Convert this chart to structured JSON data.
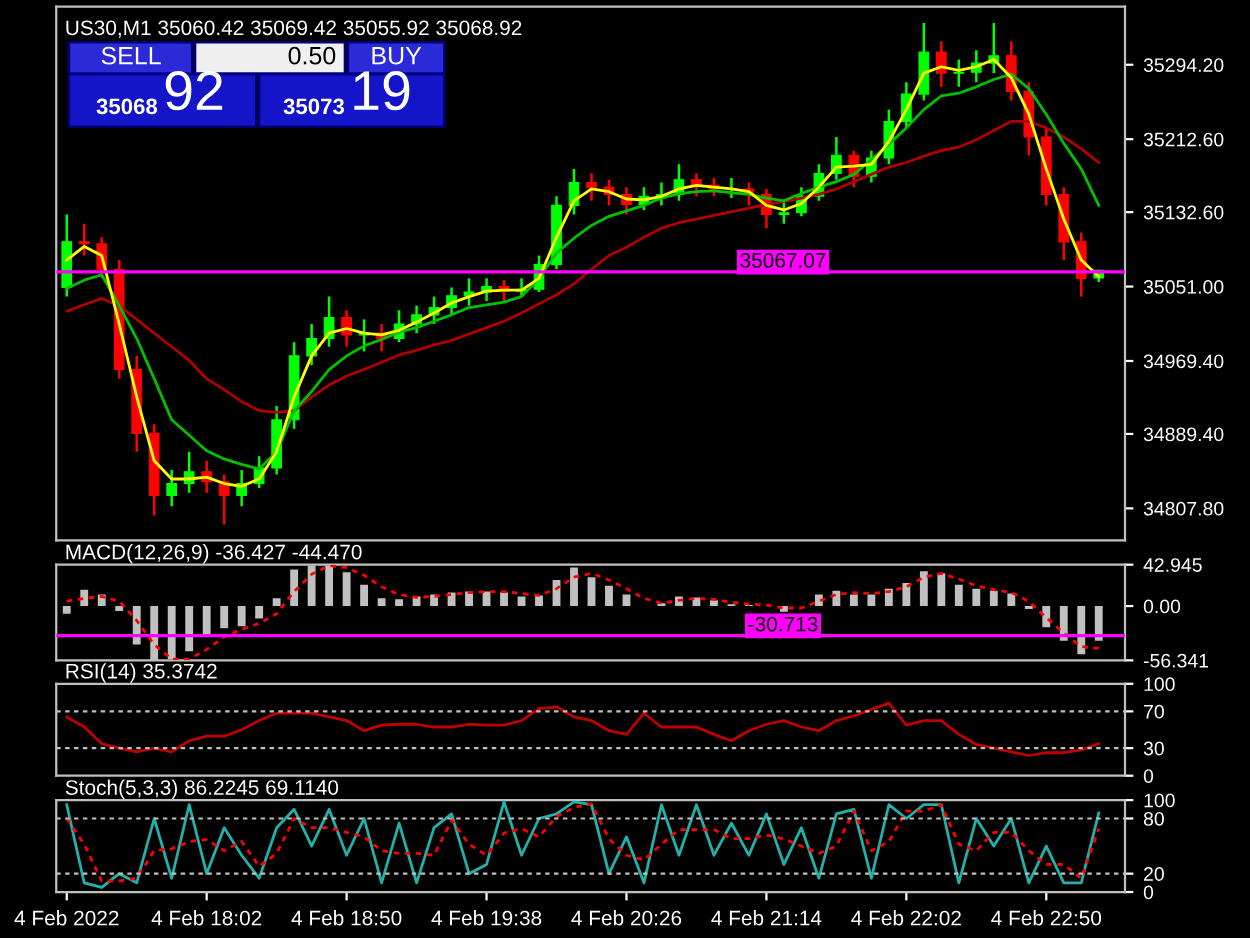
{
  "chart_data": [
    {
      "type": "candlestick",
      "title": "US30,M1 35060.42 35069.42 35055.92 35068.92",
      "tick_labels": "y",
      "grid": false,
      "legend": false,
      "ylim": [
        34772.8,
        35358
      ],
      "yticks": [
        {
          "value": 35294.2,
          "label": "35294.20"
        },
        {
          "value": 35212.6,
          "label": "35212.60"
        },
        {
          "value": 35132.6,
          "label": "35132.60"
        },
        {
          "value": 35051,
          "label": "35051.00"
        },
        {
          "value": 34969.4,
          "label": "34969.40"
        },
        {
          "value": 34889.4,
          "label": "34889.40"
        },
        {
          "value": 34807.8,
          "label": "34807.80"
        }
      ],
      "categories": [
        null,
        null,
        null,
        null,
        null,
        null,
        null,
        null,
        null,
        null,
        null,
        null,
        null,
        null,
        null,
        null,
        null,
        null,
        null,
        null,
        null,
        null,
        null,
        null,
        null,
        null,
        null,
        null,
        null,
        null,
        null,
        null,
        null,
        null,
        null,
        null,
        null,
        null,
        null,
        null,
        null,
        null,
        null,
        null,
        null,
        null,
        null,
        null,
        null,
        null,
        null,
        null,
        null,
        null,
        null,
        null,
        null,
        null,
        null,
        null
      ],
      "ohlc": [
        [
          35050,
          35130,
          35040,
          35100
        ],
        [
          35100,
          35120,
          35085,
          35098
        ],
        [
          35098,
          35105,
          35060,
          35070
        ],
        [
          35070,
          35080,
          34950,
          34960
        ],
        [
          34960,
          34975,
          34870,
          34890
        ],
        [
          34890,
          34900,
          34800,
          34822
        ],
        [
          34822,
          34850,
          34810,
          34835
        ],
        [
          34835,
          34870,
          34825,
          34848
        ],
        [
          34848,
          34860,
          34825,
          34837
        ],
        [
          34837,
          34845,
          34790,
          34822
        ],
        [
          34822,
          34850,
          34810,
          34835
        ],
        [
          34835,
          34865,
          34830,
          34852
        ],
        [
          34852,
          34920,
          34845,
          34905
        ],
        [
          34905,
          34990,
          34895,
          34975
        ],
        [
          34975,
          35010,
          34965,
          34994
        ],
        [
          34994,
          35040,
          34985,
          35017
        ],
        [
          35017,
          35025,
          34985,
          34998
        ],
        [
          34998,
          35015,
          34980,
          35000
        ],
        [
          35000,
          35010,
          34980,
          34994
        ],
        [
          34994,
          35025,
          34990,
          35010
        ],
        [
          35010,
          35030,
          35000,
          35020
        ],
        [
          35020,
          35040,
          35010,
          35028
        ],
        [
          35028,
          35050,
          35020,
          35041
        ],
        [
          35041,
          35060,
          35030,
          35045
        ],
        [
          35045,
          35060,
          35035,
          35051
        ],
        [
          35051,
          35058,
          35035,
          35046
        ],
        [
          35046,
          35060,
          35040,
          35048
        ],
        [
          35048,
          35085,
          35045,
          35075
        ],
        [
          35075,
          35150,
          35070,
          35140
        ],
        [
          35140,
          35180,
          35130,
          35165
        ],
        [
          35165,
          35175,
          35145,
          35160
        ],
        [
          35160,
          35168,
          35140,
          35152
        ],
        [
          35152,
          35160,
          35130,
          35141
        ],
        [
          35141,
          35160,
          35135,
          35150
        ],
        [
          35150,
          35165,
          35140,
          35152
        ],
        [
          35152,
          35185,
          35145,
          35168
        ],
        [
          35168,
          35175,
          35150,
          35162
        ],
        [
          35162,
          35170,
          35150,
          35158
        ],
        [
          35158,
          35170,
          35148,
          35158
        ],
        [
          35158,
          35165,
          35140,
          35152
        ],
        [
          35152,
          35158,
          35115,
          35130
        ],
        [
          35130,
          35145,
          35120,
          35132
        ],
        [
          35132,
          35160,
          35128,
          35150
        ],
        [
          35150,
          35185,
          35145,
          35175
        ],
        [
          35175,
          35215,
          35168,
          35195
        ],
        [
          35195,
          35200,
          35160,
          35172
        ],
        [
          35172,
          35200,
          35165,
          35192
        ],
        [
          35192,
          35245,
          35185,
          35232
        ],
        [
          35232,
          35275,
          35225,
          35262
        ],
        [
          35262,
          35340,
          35255,
          35308
        ],
        [
          35308,
          35320,
          35270,
          35285
        ],
        [
          35285,
          35300,
          35270,
          35286
        ],
        [
          35286,
          35310,
          35275,
          35296
        ],
        [
          35296,
          35340,
          35285,
          35304
        ],
        [
          35304,
          35320,
          35255,
          35265
        ],
        [
          35265,
          35275,
          35195,
          35215
        ],
        [
          35215,
          35225,
          35140,
          35152
        ],
        [
          35152,
          35160,
          35080,
          35100
        ],
        [
          35100,
          35110,
          35040,
          35060
        ],
        [
          35060.42,
          35069.42,
          35055.92,
          35068.92
        ]
      ],
      "colors": [
        "#00ff00",
        "#ff0000",
        "#ff0000",
        "#ff0000",
        "#ff0000",
        "#ff0000",
        "#00ff00",
        "#00ff00",
        "#ff0000",
        "#ff0000",
        "#00ff00",
        "#00ff00",
        "#00ff00",
        "#00ff00",
        "#00ff00",
        "#00ff00",
        "#ff0000",
        "#00ff00",
        "#ff0000",
        "#00ff00",
        "#00ff00",
        "#00ff00",
        "#00ff00",
        "#00ff00",
        "#00ff00",
        "#ff0000",
        "#00ff00",
        "#00ff00",
        "#00ff00",
        "#00ff00",
        "#ff0000",
        "#ff0000",
        "#ff0000",
        "#00ff00",
        "#00ff00",
        "#00ff00",
        "#ff0000",
        "#ff0000",
        "#00ff00",
        "#ff0000",
        "#ff0000",
        "#00ff00",
        "#00ff00",
        "#00ff00",
        "#00ff00",
        "#ff0000",
        "#00ff00",
        "#00ff00",
        "#00ff00",
        "#00ff00",
        "#ff0000",
        "#00ff00",
        "#00ff00",
        "#00ff00",
        "#ff0000",
        "#ff0000",
        "#ff0000",
        "#ff0000",
        "#ff0000",
        "#00ff00"
      ],
      "series": [
        {
          "type": "line",
          "color": "#b00000",
          "values": [
            35024,
            35031,
            35038,
            35030,
            35015,
            35000,
            34985,
            34970,
            34950,
            34938,
            34925,
            34915,
            34913,
            34915,
            34930,
            34943,
            34953,
            34960,
            34968,
            34976,
            34981,
            34987,
            34992,
            34999,
            35006,
            35013,
            35022,
            35032,
            35042,
            35054,
            35070,
            35085,
            35094,
            35105,
            35115,
            35121,
            35125,
            35129,
            35133,
            35137,
            35141,
            35144,
            35148,
            35152,
            35158,
            35166,
            35174,
            35182,
            35187,
            35194,
            35200,
            35204,
            35212,
            35222,
            35232,
            35232,
            35225,
            35215,
            35202,
            35187
          ]
        },
        {
          "type": "line",
          "color": "#00c000",
          "values": [
            35049,
            35058,
            35064,
            35030,
            34994,
            34950,
            34905,
            34888,
            34871,
            34862,
            34856,
            34851,
            34870,
            34915,
            34936,
            34960,
            34975,
            34986,
            34993,
            35001,
            35006,
            35013,
            35020,
            35028,
            35031,
            35034,
            35040,
            35060,
            35088,
            35104,
            35118,
            35128,
            35134,
            35140,
            35148,
            35153,
            35155,
            35156,
            35154,
            35152,
            35148,
            35145,
            35153,
            35160,
            35166,
            35174,
            35190,
            35207,
            35225,
            35245,
            35260,
            35263,
            35270,
            35278,
            35284,
            35268,
            35240,
            35208,
            35180,
            35140
          ]
        },
        {
          "type": "line",
          "color": "#ffff00",
          "values": [
            35080,
            35095,
            35085,
            35010,
            34930,
            34860,
            34840,
            34840,
            34842,
            34835,
            34832,
            34840,
            34870,
            34930,
            34975,
            35000,
            35005,
            35000,
            34998,
            35003,
            35012,
            35022,
            35033,
            35040,
            35046,
            35047,
            35047,
            35060,
            35105,
            35145,
            35158,
            35155,
            35147,
            35146,
            35150,
            35158,
            35162,
            35160,
            35158,
            35155,
            35140,
            35135,
            35142,
            35160,
            35182,
            35183,
            35185,
            35210,
            35245,
            35285,
            35292,
            35288,
            35292,
            35300,
            35280,
            35240,
            35180,
            35125,
            35080,
            35062
          ]
        }
      ],
      "ref_lines": [
        {
          "axis": "y",
          "value": 35067.07,
          "label": "35067.07",
          "color": "#ff00ff"
        }
      ],
      "annotations": [
        "SELL",
        "0.50",
        "BUY",
        "35068",
        "92",
        "35073",
        "19"
      ]
    },
    {
      "type": "bar",
      "title": "MACD(12,26,9) -36.427 -44.470",
      "tick_labels": "y",
      "grid": false,
      "legend": false,
      "ylim": [
        -56.341,
        42.945
      ],
      "yticks": [
        {
          "value": 42.945,
          "label": "42.945"
        },
        {
          "value": 0,
          "label": "0.00"
        },
        {
          "value": -56.341,
          "label": "-56.341"
        }
      ],
      "categories": [
        null,
        null,
        null,
        null,
        null,
        null,
        null,
        null,
        null,
        null,
        null,
        null,
        null,
        null,
        null,
        null,
        null,
        null,
        null,
        null,
        null,
        null,
        null,
        null,
        null,
        null,
        null,
        null,
        null,
        null,
        null,
        null,
        null,
        null,
        null,
        null,
        null,
        null,
        null,
        null,
        null,
        null,
        null,
        null,
        null,
        null,
        null,
        null,
        null,
        null,
        null,
        null,
        null,
        null,
        null,
        null,
        null,
        null,
        null,
        null
      ],
      "series": [
        {
          "type": "bar",
          "color": "#c0c0c0",
          "values": [
            -8,
            17,
            12,
            -5,
            -40,
            -56,
            -55,
            -47,
            -31,
            -23,
            -21,
            -13,
            8,
            38,
            42,
            42,
            35,
            22,
            8,
            7,
            10,
            12,
            14,
            15,
            15,
            14,
            10,
            11,
            27,
            40,
            30,
            21,
            12,
            0,
            3,
            10,
            9,
            6,
            2,
            1,
            0,
            -6,
            0,
            12,
            16,
            12,
            12,
            18,
            24,
            36,
            34,
            22,
            18,
            16,
            13,
            -3,
            -22,
            -36,
            -50,
            -36
          ]
        },
        {
          "type": "line",
          "color": "#ff0000",
          "line_style": "dashed",
          "values": [
            5,
            8,
            10,
            5,
            -15,
            -40,
            -55,
            -55,
            -45,
            -32,
            -24,
            -18,
            -8,
            15,
            33,
            42,
            40,
            32,
            20,
            12,
            9,
            10,
            12,
            14,
            15,
            15,
            13,
            11,
            18,
            30,
            34,
            27,
            18,
            8,
            3,
            6,
            8,
            7,
            4,
            2,
            1,
            -2,
            -2,
            5,
            12,
            14,
            13,
            15,
            20,
            30,
            34,
            28,
            21,
            17,
            14,
            5,
            -12,
            -28,
            -42,
            -44
          ]
        }
      ],
      "ref_lines": [
        {
          "axis": "y",
          "value": -30.713,
          "label": "-30.713",
          "color": "#ff00ff"
        }
      ]
    },
    {
      "type": "line",
      "title": "RSI(14) 35.3742",
      "tick_labels": "y",
      "grid": false,
      "legend": false,
      "ylim": [
        0,
        100
      ],
      "yticks": [
        100,
        70,
        30,
        0
      ],
      "categories": [
        null,
        null,
        null,
        null,
        null,
        null,
        null,
        null,
        null,
        null,
        null,
        null,
        null,
        null,
        null,
        null,
        null,
        null,
        null,
        null,
        null,
        null,
        null,
        null,
        null,
        null,
        null,
        null,
        null,
        null,
        null,
        null,
        null,
        null,
        null,
        null,
        null,
        null,
        null,
        null,
        null,
        null,
        null,
        null,
        null,
        null,
        null,
        null,
        null,
        null,
        null,
        null,
        null,
        null,
        null,
        null,
        null,
        null,
        null,
        null
      ],
      "series": [
        {
          "color": "#c00000",
          "values": [
            64,
            53,
            35,
            30,
            26,
            30,
            26,
            38,
            43,
            43,
            50,
            60,
            68,
            68,
            68,
            64,
            60,
            49,
            55,
            56,
            56,
            53,
            53,
            56,
            55,
            55,
            60,
            73,
            75,
            64,
            60,
            49,
            45,
            68,
            53,
            53,
            53,
            45,
            38,
            49,
            56,
            60,
            53,
            49,
            60,
            65,
            72,
            79,
            55,
            60,
            60,
            45,
            34,
            30,
            26,
            22,
            25,
            25,
            28,
            35
          ]
        }
      ],
      "ref_lines": [
        {
          "axis": "y",
          "value": 70,
          "color": "#c0c0c0",
          "line_style": "dashed"
        },
        {
          "axis": "y",
          "value": 30,
          "color": "#c0c0c0",
          "line_style": "dashed"
        }
      ]
    },
    {
      "type": "line",
      "title": "Stoch(5,3,3) 86.2245 69.1140",
      "grid": false,
      "legend": false,
      "ylim": [
        0,
        100
      ],
      "yticks": [
        100,
        80,
        20,
        0
      ],
      "categories": [
        "4 Feb 2022",
        null,
        null,
        null,
        null,
        null,
        null,
        null,
        "4 Feb 18:02",
        null,
        null,
        null,
        null,
        null,
        null,
        null,
        "4 Feb 18:50",
        null,
        null,
        null,
        null,
        null,
        null,
        null,
        "4 Feb 19:38",
        null,
        null,
        null,
        null,
        null,
        null,
        null,
        "4 Feb 20:26",
        null,
        null,
        null,
        null,
        null,
        null,
        null,
        "4 Feb 21:14",
        null,
        null,
        null,
        null,
        null,
        null,
        null,
        "4 Feb 22:02",
        null,
        null,
        null,
        null,
        null,
        null,
        null,
        "4 Feb 22:50",
        null,
        null,
        null
      ],
      "series": [
        {
          "color": "#20b2aa",
          "values": [
            95,
            10,
            5,
            20,
            10,
            80,
            15,
            95,
            20,
            70,
            40,
            15,
            70,
            90,
            50,
            90,
            40,
            80,
            10,
            75,
            10,
            70,
            85,
            20,
            30,
            98,
            40,
            80,
            85,
            98,
            95,
            20,
            60,
            10,
            95,
            40,
            95,
            40,
            75,
            40,
            85,
            30,
            70,
            15,
            85,
            90,
            15,
            95,
            80,
            95,
            95,
            10,
            80,
            50,
            80,
            10,
            50,
            10,
            10,
            86
          ]
        },
        {
          "color": "#ff0000",
          "line_style": "dashed",
          "values": [
            80,
            52,
            12,
            12,
            15,
            45,
            47,
            55,
            57,
            45,
            55,
            28,
            42,
            80,
            70,
            70,
            65,
            60,
            45,
            42,
            42,
            40,
            78,
            52,
            40,
            64,
            69,
            60,
            82,
            92,
            96,
            58,
            40,
            35,
            52,
            68,
            68,
            68,
            58,
            58,
            62,
            58,
            50,
            42,
            50,
            88,
            45,
            55,
            88,
            88,
            95,
            52,
            45,
            65,
            65,
            45,
            30,
            30,
            15,
            69
          ]
        }
      ],
      "ref_lines": [
        {
          "axis": "y",
          "value": 80,
          "color": "#c0c0c0",
          "line_style": "dashed"
        },
        {
          "axis": "y",
          "value": 20,
          "color": "#c0c0c0",
          "line_style": "dashed"
        }
      ]
    }
  ]
}
